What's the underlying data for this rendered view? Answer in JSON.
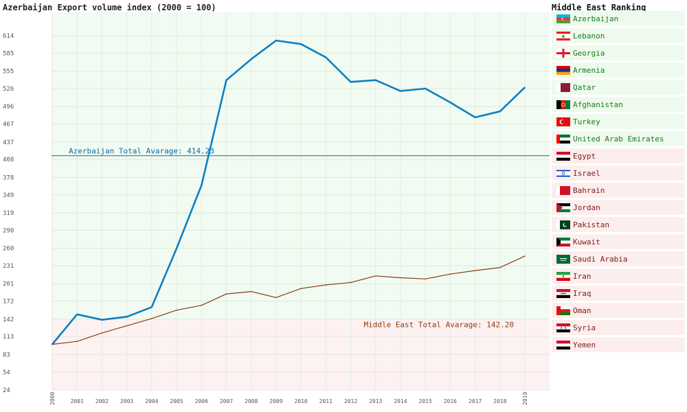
{
  "chart_title": "Azerbaijan Export volume index (2000 = 100)",
  "chart_data": {
    "type": "line",
    "title": "Azerbaijan Export volume index (2000 = 100)",
    "categories": [
      "2000",
      "2001",
      "2002",
      "2003",
      "2004",
      "2005",
      "2006",
      "2007",
      "2008",
      "2009",
      "2010",
      "2011",
      "2012",
      "2013",
      "2014",
      "2015",
      "2016",
      "2017",
      "2018",
      "2019"
    ],
    "series": [
      {
        "color": "#0a7fc2",
        "values": [
          100,
          150,
          141,
          146,
          162,
          260,
          365,
          540,
          575,
          606,
          600,
          578,
          537,
          540,
          522,
          526,
          503,
          478,
          488,
          528
        ]
      },
      {
        "color": "#8b3a0f",
        "values": [
          100,
          105,
          119,
          131,
          143,
          157,
          165,
          184,
          188,
          178,
          193,
          199,
          203,
          214,
          211,
          209,
          217,
          223,
          228,
          247
        ]
      }
    ],
    "ylim": [
      24,
      630
    ],
    "yticks": [
      24,
      54,
      83,
      113,
      142,
      172,
      201,
      231,
      260,
      290,
      319,
      349,
      378,
      408,
      437,
      467,
      496,
      526,
      555,
      585,
      614
    ],
    "reference_lines": [
      {
        "label": "Azerbaijan Total Avarage: 414.23",
        "value": 414.23,
        "color": "#0a6aa8"
      },
      {
        "label": "Middle East Total Avarage: 142.20",
        "value": 142.2,
        "color": "#8b3a0f"
      }
    ],
    "grid": true
  },
  "ranking": {
    "title": "Middle East Ranking",
    "items": [
      {
        "name": "Azerbaijan",
        "group": "above",
        "flag": "azerbaijan-flag-icon",
        "colors": [
          "#00b5e2",
          "#ef3340",
          "#509e2f"
        ]
      },
      {
        "name": "Lebanon",
        "group": "above",
        "flag": "lebanon-flag-icon",
        "colors": [
          "#ed1c24",
          "#ffffff",
          "#00a651"
        ]
      },
      {
        "name": "Georgia",
        "group": "above",
        "flag": "georgia-flag-icon",
        "colors": [
          "#ffffff",
          "#e8112d"
        ]
      },
      {
        "name": "Armenia",
        "group": "above",
        "flag": "armenia-flag-icon",
        "colors": [
          "#d90012",
          "#0033a0",
          "#f2a800"
        ]
      },
      {
        "name": "Qatar",
        "group": "above",
        "flag": "qatar-flag-icon",
        "colors": [
          "#8d1b3d",
          "#ffffff"
        ]
      },
      {
        "name": "Afghanistan",
        "group": "above",
        "flag": "afghanistan-flag-icon",
        "colors": [
          "#000000",
          "#d32011",
          "#007a36"
        ]
      },
      {
        "name": "Turkey",
        "group": "above",
        "flag": "turkey-flag-icon",
        "colors": [
          "#e30a17",
          "#ffffff"
        ]
      },
      {
        "name": "United Arab Emirates",
        "group": "above",
        "flag": "uae-flag-icon",
        "colors": [
          "#00732f",
          "#ffffff",
          "#000000",
          "#ff0000"
        ]
      },
      {
        "name": "Egypt",
        "group": "below",
        "flag": "egypt-flag-icon",
        "colors": [
          "#ce1126",
          "#ffffff",
          "#000000"
        ]
      },
      {
        "name": "Israel",
        "group": "below",
        "flag": "israel-flag-icon",
        "colors": [
          "#ffffff",
          "#0038b8"
        ]
      },
      {
        "name": "Bahrain",
        "group": "below",
        "flag": "bahrain-flag-icon",
        "colors": [
          "#ffffff",
          "#ce1126"
        ]
      },
      {
        "name": "Jordan",
        "group": "below",
        "flag": "jordan-flag-icon",
        "colors": [
          "#000000",
          "#ffffff",
          "#007a3d",
          "#ce1126"
        ]
      },
      {
        "name": "Pakistan",
        "group": "below",
        "flag": "pakistan-flag-icon",
        "colors": [
          "#ffffff",
          "#01411c"
        ]
      },
      {
        "name": "Kuwait",
        "group": "below",
        "flag": "kuwait-flag-icon",
        "colors": [
          "#007a3d",
          "#ffffff",
          "#ce1126",
          "#000000"
        ]
      },
      {
        "name": "Saudi Arabia",
        "group": "below",
        "flag": "saudi-arabia-flag-icon",
        "colors": [
          "#006c35",
          "#ffffff"
        ]
      },
      {
        "name": "Iran",
        "group": "below",
        "flag": "iran-flag-icon",
        "colors": [
          "#239f40",
          "#ffffff",
          "#da0000"
        ]
      },
      {
        "name": "Iraq",
        "group": "below",
        "flag": "iraq-flag-icon",
        "colors": [
          "#ce1126",
          "#ffffff",
          "#000000"
        ]
      },
      {
        "name": "Oman",
        "group": "below",
        "flag": "oman-flag-icon",
        "colors": [
          "#ffffff",
          "#db161b",
          "#008000"
        ]
      },
      {
        "name": "Syria",
        "group": "below",
        "flag": "syria-flag-icon",
        "colors": [
          "#ce1126",
          "#ffffff",
          "#000000"
        ]
      },
      {
        "name": "Yemen",
        "group": "below",
        "flag": "yemen-flag-icon",
        "colors": [
          "#ce1126",
          "#ffffff",
          "#000000"
        ]
      }
    ]
  }
}
